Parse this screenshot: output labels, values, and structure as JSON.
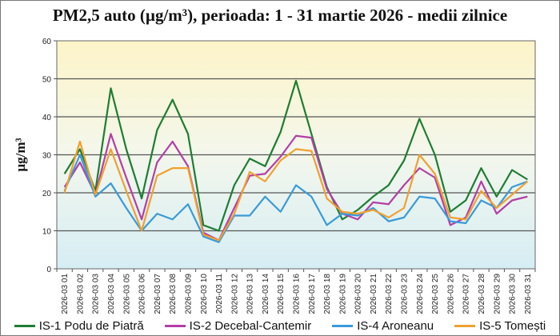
{
  "chart_data": {
    "type": "line",
    "title": "PM2,5 auto (µg/m³), perioada: 1 - 31 martie 2026  - medii zilnice",
    "ylabel": "µg/m³",
    "xlabel": "",
    "ylim": [
      0,
      60
    ],
    "yticks": [
      0,
      10,
      20,
      30,
      40,
      50,
      60
    ],
    "grid": true,
    "legend": "bottom",
    "categories": [
      "2026-03 01",
      "2026-03 02",
      "2026-03 03",
      "2026-03 04",
      "2026-03 05",
      "2026-03 06",
      "2026-03 07",
      "2026-03 08",
      "2026-03 09",
      "2026-03 10",
      "2026-03 11",
      "2026-03 12",
      "2026-03 13",
      "2026-03 14",
      "2026-03 15",
      "2026-03 16",
      "2026-03 17",
      "2026-03 18",
      "2026-03 19",
      "2026-03 20",
      "2026-03 21",
      "2026-03 22",
      "2026-03 23",
      "2026-03 24",
      "2026-03 25",
      "2026-03 26",
      "2026-03 27",
      "2026-03 28",
      "2026-03 29",
      "2026-03 30",
      "2026-03 31"
    ],
    "series": [
      {
        "name": "IS-1 Podu de Piatră",
        "color": "#1e7d32",
        "values": [
          25,
          31.5,
          20.5,
          47.5,
          31.5,
          18.5,
          36.5,
          44.5,
          35.5,
          11.5,
          10,
          22,
          29,
          27,
          36,
          49.5,
          35.5,
          21.5,
          13,
          15.5,
          19,
          22,
          28.5,
          39.5,
          30,
          15,
          18,
          26.5,
          19,
          26,
          23.5
        ]
      },
      {
        "name": "IS-2 Decebal-Cantemir",
        "color": "#b33fa6",
        "values": [
          21.5,
          28,
          19.5,
          35.5,
          24,
          13,
          28,
          33.5,
          27,
          9.5,
          7.5,
          16,
          24.5,
          25,
          29.5,
          35,
          34.5,
          21,
          14.5,
          13,
          17.5,
          17,
          22,
          26.5,
          24,
          11.5,
          13.5,
          23,
          14.5,
          18,
          19
        ]
      },
      {
        "name": "IS-4 Aroneanu",
        "color": "#3a9ad9",
        "values": [
          20.5,
          30,
          19,
          22.5,
          16,
          10,
          14.5,
          13,
          17,
          8.5,
          7,
          14,
          14,
          19,
          15,
          22,
          19,
          11.5,
          14.5,
          14,
          16,
          12.5,
          13.5,
          19,
          18.5,
          12.5,
          12,
          18,
          16,
          21.5,
          23
        ]
      },
      {
        "name": "IS-5 Tomești",
        "color": "#f0a030",
        "values": [
          20,
          33.5,
          19.5,
          31.5,
          20.5,
          10,
          24.5,
          26.5,
          26.5,
          9,
          7.5,
          14.5,
          25.5,
          23,
          28.5,
          31.5,
          31,
          18.5,
          15,
          14.5,
          15.5,
          13.5,
          16,
          30,
          25,
          13.5,
          13,
          20.5,
          16,
          19.5,
          23
        ]
      }
    ]
  }
}
